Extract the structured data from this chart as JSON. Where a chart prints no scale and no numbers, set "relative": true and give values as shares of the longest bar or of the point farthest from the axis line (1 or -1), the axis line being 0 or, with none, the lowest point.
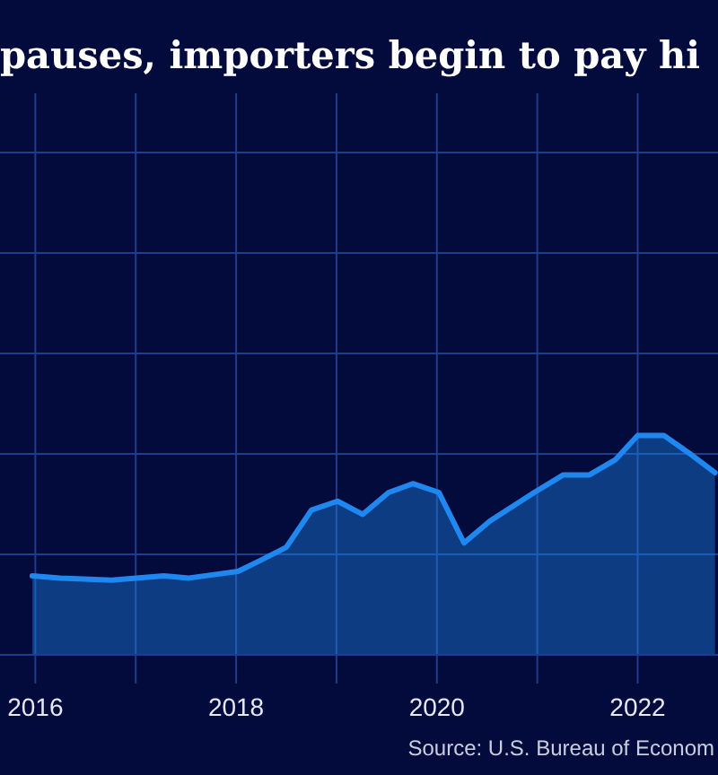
{
  "chart_data": {
    "type": "area",
    "title": "pauses, importers begin to pay hi",
    "annotations": [
      "Source: U.S. Bureau of Econom"
    ],
    "relative": true,
    "grid": true,
    "x": [
      2015.97,
      2016.25,
      2016.76,
      2017.28,
      2017.53,
      2018.02,
      2018.24,
      2018.5,
      2018.75,
      2019.01,
      2019.26,
      2019.52,
      2019.76,
      2020.02,
      2020.27,
      2020.53,
      2020.97,
      2021.26,
      2021.52,
      2021.78,
      2022.0,
      2022.26,
      2022.51,
      2022.77
    ],
    "xlim": [
      2015.97,
      2022.8
    ],
    "xticks": [
      2016,
      {
        "value": 2017,
        "label": null
      },
      2018,
      {
        "value": 2019,
        "label": null
      },
      2020,
      {
        "value": 2021,
        "label": null
      },
      2022
    ],
    "series": [
      {
        "color": "#1e88f0",
        "values": [
          0.36,
          0.35,
          0.34,
          0.36,
          0.35,
          0.38,
          0.43,
          0.49,
          0.66,
          0.7,
          0.64,
          0.74,
          0.78,
          0.74,
          0.51,
          0.61,
          0.74,
          0.82,
          0.82,
          0.89,
          1.0,
          1.0,
          0.92,
          0.83
        ]
      }
    ]
  }
}
